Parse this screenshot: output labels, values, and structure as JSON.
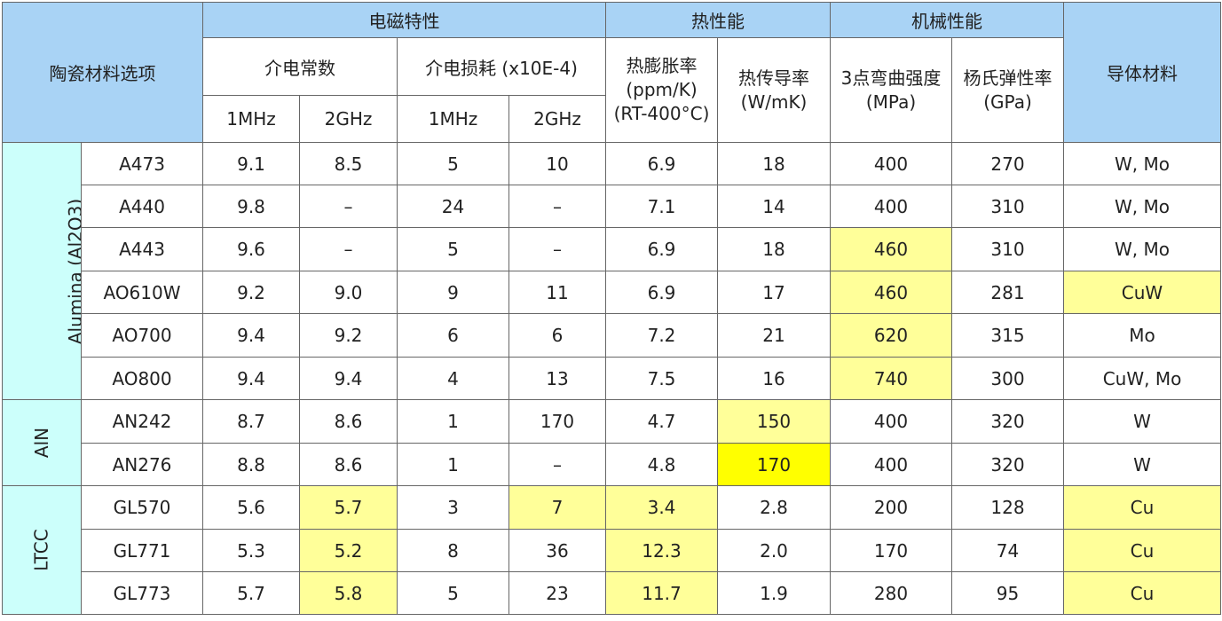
{
  "headers": {
    "material": "陶瓷材料选项",
    "em": "电磁特性",
    "thermal": "热性能",
    "mech": "机械性能",
    "conductor": "导体材料",
    "dk": "介电常数",
    "df": "介电损耗 (x10E-4)",
    "cte": [
      "热膨胀率",
      "(ppm/K)",
      "(RT-400°C)"
    ],
    "tc": [
      "热传导率",
      "(W/mK)"
    ],
    "flex": [
      "3点弯曲强度",
      "(MPa)"
    ],
    "young": [
      "杨氏弹性率",
      "(GPa)"
    ],
    "freq": [
      "1MHz",
      "2GHz",
      "1MHz",
      "2GHz"
    ]
  },
  "groups": {
    "alumina": "Alumina (Al2O3)",
    "aln": "AlN",
    "ltcc": "LTCC"
  },
  "rows": [
    {
      "name": "A473",
      "dk1": "9.1",
      "dk2": "8.5",
      "df1": "5",
      "df2": "10",
      "cte": "6.9",
      "tc": "18",
      "flex": "400",
      "young": "270",
      "cond": "W, Mo"
    },
    {
      "name": "A440",
      "dk1": "9.8",
      "dk2": "–",
      "df1": "24",
      "df2": "–",
      "cte": "7.1",
      "tc": "14",
      "flex": "400",
      "young": "310",
      "cond": "W, Mo"
    },
    {
      "name": "A443",
      "dk1": "9.6",
      "dk2": "–",
      "df1": "5",
      "df2": "–",
      "cte": "6.9",
      "tc": "18",
      "flex": "460",
      "young": "310",
      "cond": "W, Mo"
    },
    {
      "name": "AO610W",
      "dk1": "9.2",
      "dk2": "9.0",
      "df1": "9",
      "df2": "11",
      "cte": "6.9",
      "tc": "17",
      "flex": "460",
      "young": "281",
      "cond": "CuW"
    },
    {
      "name": "AO700",
      "dk1": "9.4",
      "dk2": "9.2",
      "df1": "6",
      "df2": "6",
      "cte": "7.2",
      "tc": "21",
      "flex": "620",
      "young": "315",
      "cond": "Mo"
    },
    {
      "name": "AO800",
      "dk1": "9.4",
      "dk2": "9.4",
      "df1": "4",
      "df2": "13",
      "cte": "7.5",
      "tc": "16",
      "flex": "740",
      "young": "300",
      "cond": "CuW, Mo"
    },
    {
      "name": "AN242",
      "dk1": "8.7",
      "dk2": "8.6",
      "df1": "1",
      "df2": "170",
      "cte": "4.7",
      "tc": "150",
      "flex": "400",
      "young": "320",
      "cond": "W"
    },
    {
      "name": "AN276",
      "dk1": "8.8",
      "dk2": "8.6",
      "df1": "1",
      "df2": "–",
      "cte": "4.8",
      "tc": "170",
      "flex": "400",
      "young": "320",
      "cond": "W"
    },
    {
      "name": "GL570",
      "dk1": "5.6",
      "dk2": "5.7",
      "df1": "3",
      "df2": "7",
      "cte": "3.4",
      "tc": "2.8",
      "flex": "200",
      "young": "128",
      "cond": "Cu"
    },
    {
      "name": "GL771",
      "dk1": "5.3",
      "dk2": "5.2",
      "df1": "8",
      "df2": "36",
      "cte": "12.3",
      "tc": "2.0",
      "flex": "170",
      "young": "74",
      "cond": "Cu"
    },
    {
      "name": "GL773",
      "dk1": "5.7",
      "dk2": "5.8",
      "df1": "5",
      "df2": "23",
      "cte": "11.7",
      "tc": "1.9",
      "flex": "280",
      "young": "95",
      "cond": "Cu"
    }
  ],
  "colors": {
    "header_bg": "#a9d3f5",
    "group_bg": "#ccfffb",
    "highlight": "#ffff99",
    "highlight_strong": "#ffff00"
  }
}
